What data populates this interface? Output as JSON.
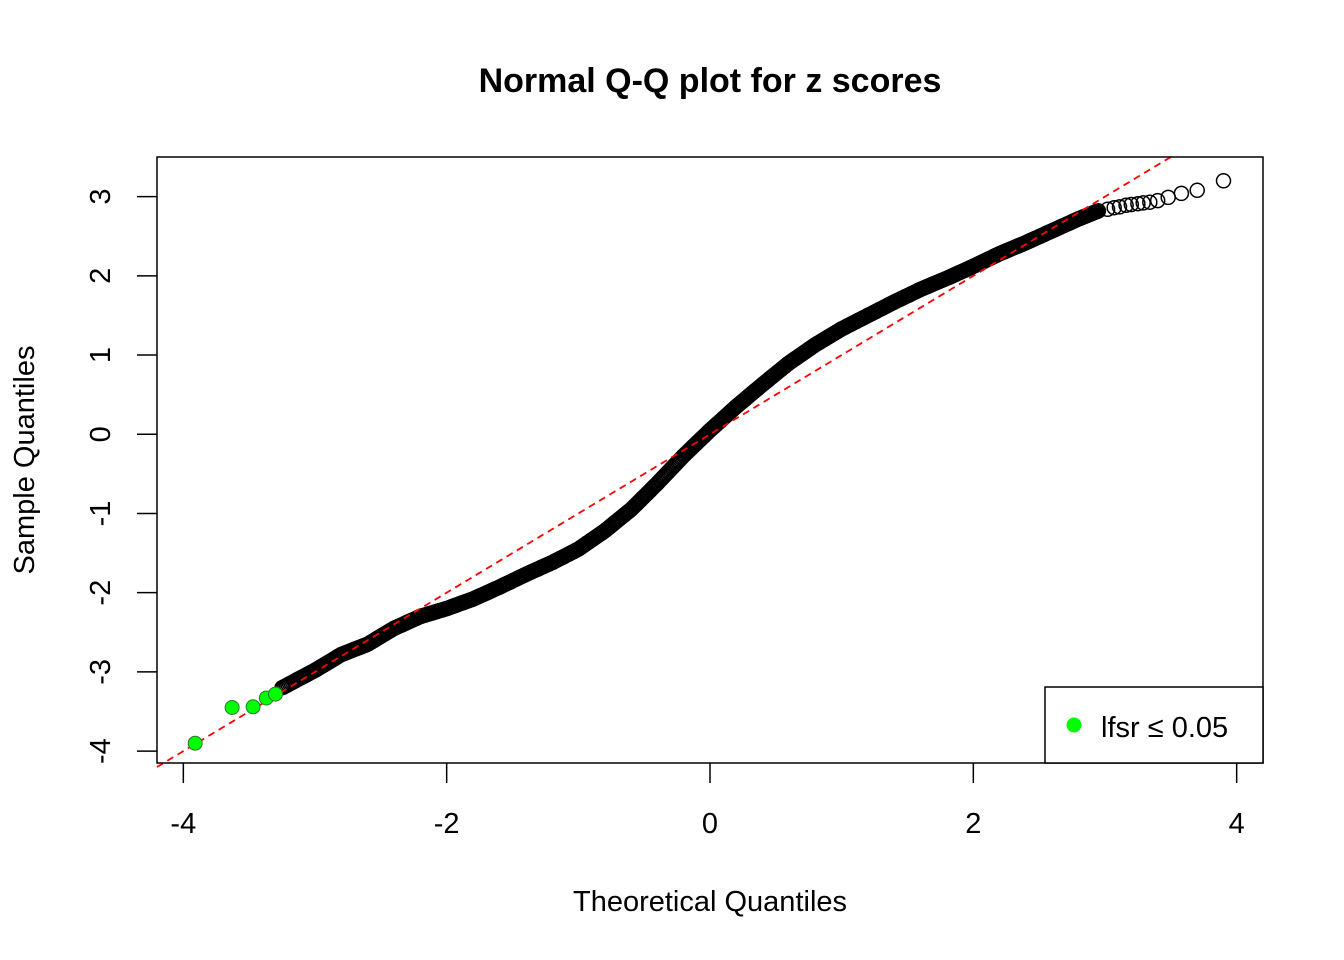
{
  "chart_data": {
    "type": "scatter",
    "title": "Normal Q-Q plot for z scores",
    "xlabel": "Theoretical Quantiles",
    "ylabel": "Sample Quantiles",
    "xlim": [
      -4.2,
      4.2
    ],
    "ylim": [
      -4.15,
      3.5
    ],
    "xticks": [
      -4,
      -2,
      0,
      2,
      4
    ],
    "xtick_labels": [
      "-4",
      "-2",
      "0",
      "2",
      "4"
    ],
    "yticks": [
      -4,
      -3,
      -2,
      -1,
      0,
      1,
      2,
      3
    ],
    "ytick_labels": [
      "-4",
      "-3",
      "-2",
      "-1",
      "0",
      "1",
      "2",
      "3"
    ],
    "grid": false,
    "reference_line": {
      "slope": 1.0,
      "intercept": 0.0,
      "color": "#ff0000",
      "style": "dashed"
    },
    "curve_knots": [
      [
        -3.25,
        -3.2
      ],
      [
        -3.0,
        -2.98
      ],
      [
        -2.8,
        -2.78
      ],
      [
        -2.6,
        -2.65
      ],
      [
        -2.4,
        -2.45
      ],
      [
        -2.2,
        -2.3
      ],
      [
        -2.0,
        -2.2
      ],
      [
        -1.8,
        -2.08
      ],
      [
        -1.6,
        -1.93
      ],
      [
        -1.4,
        -1.77
      ],
      [
        -1.2,
        -1.62
      ],
      [
        -1.0,
        -1.45
      ],
      [
        -0.8,
        -1.22
      ],
      [
        -0.6,
        -0.95
      ],
      [
        -0.4,
        -0.62
      ],
      [
        -0.2,
        -0.27
      ],
      [
        0.0,
        0.05
      ],
      [
        0.2,
        0.35
      ],
      [
        0.4,
        0.63
      ],
      [
        0.6,
        0.9
      ],
      [
        0.8,
        1.13
      ],
      [
        1.0,
        1.33
      ],
      [
        1.2,
        1.5
      ],
      [
        1.4,
        1.67
      ],
      [
        1.6,
        1.83
      ],
      [
        1.8,
        1.97
      ],
      [
        2.0,
        2.12
      ],
      [
        2.2,
        2.28
      ],
      [
        2.4,
        2.42
      ],
      [
        2.6,
        2.57
      ],
      [
        2.8,
        2.72
      ],
      [
        2.95,
        2.82
      ]
    ],
    "tail_points": [
      [
        3.02,
        2.84
      ],
      [
        3.07,
        2.86
      ],
      [
        3.11,
        2.87
      ],
      [
        3.16,
        2.89
      ],
      [
        3.2,
        2.9
      ],
      [
        3.25,
        2.91
      ],
      [
        3.29,
        2.92
      ],
      [
        3.34,
        2.93
      ],
      [
        3.4,
        2.95
      ],
      [
        3.48,
        2.99
      ],
      [
        3.58,
        3.04
      ],
      [
        3.7,
        3.08
      ],
      [
        3.9,
        3.2
      ]
    ],
    "significant_points": [
      [
        -3.91,
        -3.9
      ],
      [
        -3.63,
        -3.45
      ],
      [
        -3.47,
        -3.44
      ],
      [
        -3.37,
        -3.33
      ],
      [
        -3.3,
        -3.28
      ]
    ],
    "series": [
      {
        "name": "",
        "marker": "open-circle",
        "color": "#000000"
      },
      {
        "name": "lfsr  ≤ 0.05",
        "marker": "filled-circle",
        "color": "#00ff00"
      }
    ],
    "legend": {
      "placement": "bottom-right",
      "label": "lfsr  ≤ 0.05"
    }
  }
}
